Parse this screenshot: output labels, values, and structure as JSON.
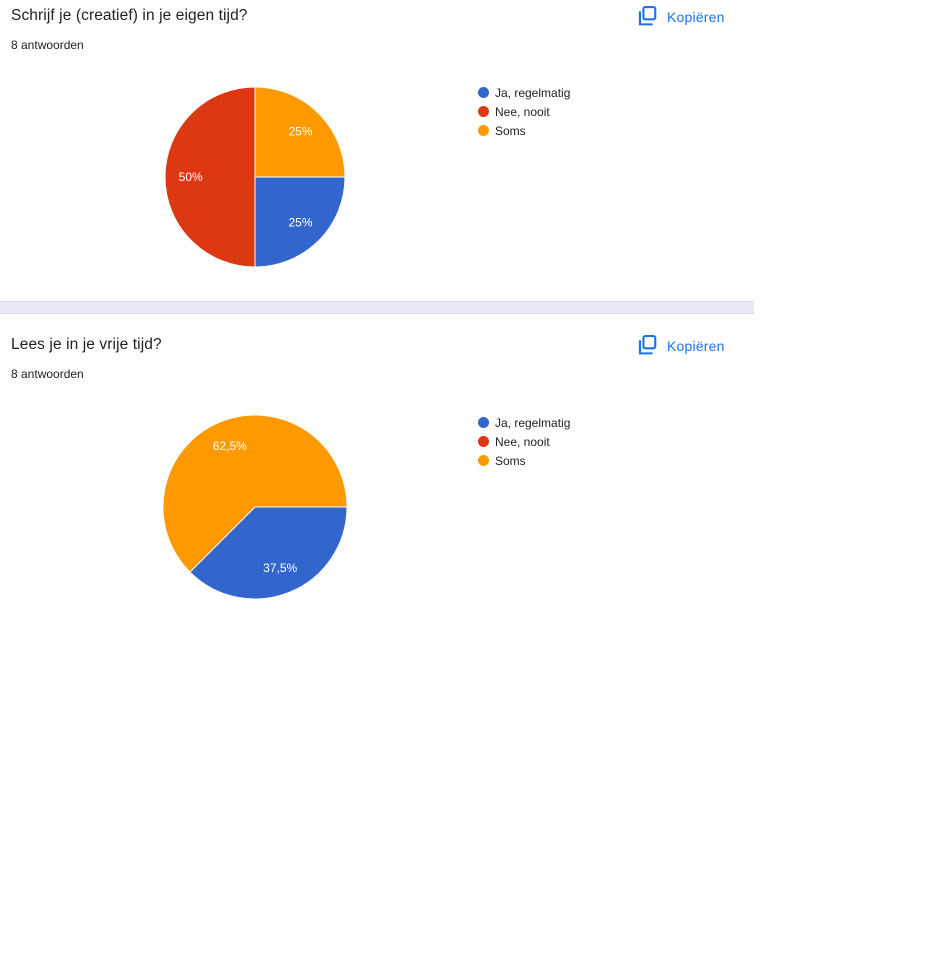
{
  "ui": {
    "copy_button_label": "Kopiëren",
    "accent_color": "#1a73e8",
    "separator_color": "#e9e8f4",
    "background_color": "#ffffff",
    "text_color": "#202124"
  },
  "chart_data": [
    {
      "type": "pie",
      "title": "Schrijf je (creatief) in je eigen tijd?",
      "subtitle": "8 antwoorden",
      "labels": [
        "Ja, regelmatig",
        "Nee, nooit",
        "Soms"
      ],
      "values": [
        25,
        50,
        25
      ],
      "value_labels": [
        "25%",
        "50%",
        "25%"
      ],
      "colors": [
        "#3366cc",
        "#dc3912",
        "#ff9900"
      ],
      "start_angle_deg": 90,
      "direction": "clockwise",
      "legend_position": "right",
      "slice_label_color": "#ffffff"
    },
    {
      "type": "pie",
      "title": "Lees je in je vrije tijd?",
      "subtitle": "8 antwoorden",
      "labels": [
        "Ja, regelmatig",
        "Nee, nooit",
        "Soms"
      ],
      "values": [
        37.5,
        0,
        62.5
      ],
      "value_labels": [
        "37,5%",
        "",
        "62,5%"
      ],
      "colors": [
        "#3366cc",
        "#dc3912",
        "#ff9900"
      ],
      "start_angle_deg": 90,
      "direction": "clockwise",
      "legend_position": "right",
      "slice_label_color": "#ffffff"
    }
  ]
}
